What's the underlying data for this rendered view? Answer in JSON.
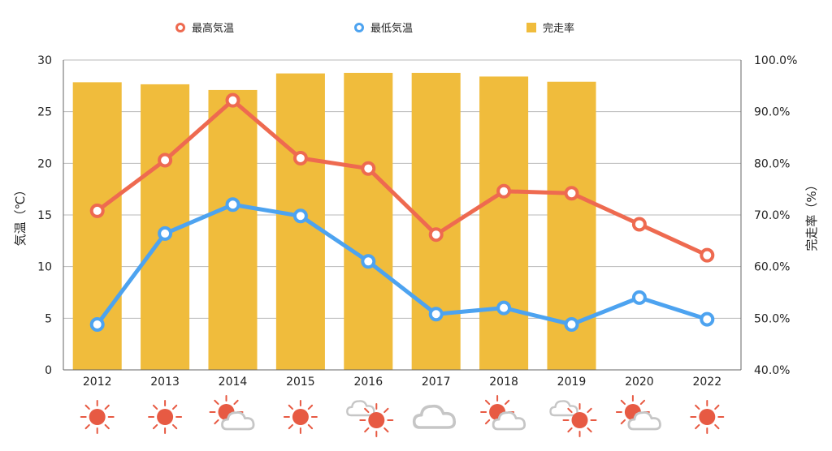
{
  "chart_data": {
    "type": "bar-line combo",
    "categories": [
      "2012",
      "2013",
      "2014",
      "2015",
      "2016",
      "2017",
      "2018",
      "2019",
      "2020",
      "2022"
    ],
    "legend": [
      {
        "label": "最高気温",
        "type": "line",
        "color": "#ee6a50"
      },
      {
        "label": "最低気温",
        "type": "line",
        "color": "#4da3f0"
      },
      {
        "label": "完走率",
        "type": "bar",
        "color": "#f0bc3c"
      }
    ],
    "series": [
      {
        "name": "完走率",
        "type": "bar",
        "axis": "right",
        "color": "#f0bc3c",
        "values": [
          95.7,
          95.3,
          94.2,
          97.4,
          97.5,
          97.5,
          96.8,
          95.8,
          null,
          null
        ]
      },
      {
        "name": "最高気温",
        "type": "line",
        "axis": "left",
        "color": "#ee6a50",
        "values": [
          15.4,
          20.3,
          26.1,
          20.5,
          19.5,
          13.1,
          17.3,
          17.1,
          14.1,
          11.1
        ]
      },
      {
        "name": "最低気温",
        "type": "line",
        "axis": "left",
        "color": "#4da3f0",
        "values": [
          4.4,
          13.2,
          16.0,
          14.9,
          10.5,
          5.4,
          6.0,
          4.4,
          7.0,
          4.9
        ]
      }
    ],
    "y_left": {
      "label": "気温（℃）",
      "min": 0,
      "max": 30,
      "ticks": [
        "0",
        "5",
        "10",
        "15",
        "20",
        "25",
        "30"
      ]
    },
    "y_right": {
      "label": "完走率（%）",
      "min": 40,
      "max": 100,
      "ticks": [
        "40.0%",
        "50.0%",
        "60.0%",
        "70.0%",
        "80.0%",
        "90.0%",
        "100.0%"
      ]
    },
    "grid": true,
    "legend_position": "top",
    "weather_icons": [
      "sun-icon",
      "sun-icon",
      "sun-cloud-icon",
      "sun-icon",
      "cloud-sun-icon",
      "cloud-icon",
      "sun-cloud-icon",
      "cloud-sun-icon",
      "sun-cloud-icon",
      "sun-icon"
    ]
  }
}
